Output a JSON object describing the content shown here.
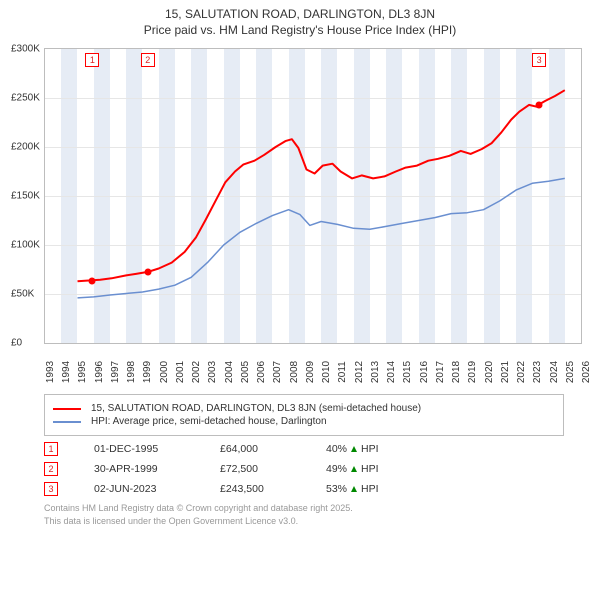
{
  "title": {
    "line1": "15, SALUTATION ROAD, DARLINGTON, DL3 8JN",
    "line2": "Price paid vs. HM Land Registry's House Price Index (HPI)"
  },
  "chart": {
    "type": "line",
    "background_color": "#ffffff",
    "border_color": "#bdbdbd",
    "grid_color": "#e6e6e6",
    "band_color": "#e6ecf5",
    "ylim": [
      0,
      300000
    ],
    "ytick_step": 50000,
    "yticks": [
      "£0",
      "£50K",
      "£100K",
      "£150K",
      "£200K",
      "£250K",
      "£300K"
    ],
    "xlim": [
      1993,
      2026
    ],
    "xticks": [
      1993,
      1994,
      1995,
      1996,
      1997,
      1998,
      1999,
      2000,
      2001,
      2002,
      2003,
      2004,
      2005,
      2006,
      2007,
      2008,
      2009,
      2010,
      2011,
      2012,
      2013,
      2014,
      2015,
      2016,
      2017,
      2018,
      2019,
      2020,
      2021,
      2022,
      2023,
      2024,
      2025,
      2026
    ],
    "band_years": [
      1994,
      1996,
      1998,
      2000,
      2002,
      2004,
      2006,
      2008,
      2010,
      2012,
      2014,
      2016,
      2018,
      2020,
      2022,
      2024
    ],
    "marker_box_color": "#ff0000",
    "marker_text_color": "#dd2222",
    "series": [
      {
        "name": "price_paid",
        "label": "15, SALUTATION ROAD, DARLINGTON, DL3 8JN (semi-detached house)",
        "color": "#ff0000",
        "line_width": 2,
        "data": [
          [
            1995.0,
            63000
          ],
          [
            1995.92,
            64000
          ],
          [
            1996.4,
            64500
          ],
          [
            1997.1,
            66000
          ],
          [
            1998.0,
            69000
          ],
          [
            1998.6,
            70500
          ],
          [
            1999.33,
            72500
          ],
          [
            2000.0,
            76000
          ],
          [
            2000.8,
            82000
          ],
          [
            2001.6,
            93000
          ],
          [
            2002.3,
            108000
          ],
          [
            2002.9,
            126000
          ],
          [
            2003.5,
            145000
          ],
          [
            2004.1,
            164000
          ],
          [
            2004.7,
            175000
          ],
          [
            2005.2,
            182000
          ],
          [
            2005.9,
            186000
          ],
          [
            2006.5,
            192000
          ],
          [
            2007.2,
            200000
          ],
          [
            2007.8,
            206000
          ],
          [
            2008.2,
            208000
          ],
          [
            2008.6,
            199000
          ],
          [
            2009.1,
            177000
          ],
          [
            2009.6,
            173000
          ],
          [
            2010.1,
            181000
          ],
          [
            2010.7,
            183000
          ],
          [
            2011.2,
            175000
          ],
          [
            2011.9,
            168000
          ],
          [
            2012.5,
            171000
          ],
          [
            2013.2,
            168000
          ],
          [
            2013.9,
            170000
          ],
          [
            2014.6,
            175000
          ],
          [
            2015.2,
            179000
          ],
          [
            2015.9,
            181000
          ],
          [
            2016.6,
            186000
          ],
          [
            2017.2,
            188000
          ],
          [
            2017.9,
            191000
          ],
          [
            2018.6,
            196000
          ],
          [
            2019.2,
            193000
          ],
          [
            2019.9,
            198000
          ],
          [
            2020.5,
            204000
          ],
          [
            2021.1,
            215000
          ],
          [
            2021.7,
            228000
          ],
          [
            2022.2,
            236000
          ],
          [
            2022.8,
            243000
          ],
          [
            2023.3,
            241000
          ],
          [
            2023.42,
            243500
          ],
          [
            2023.8,
            247000
          ],
          [
            2024.4,
            252000
          ],
          [
            2025.0,
            258000
          ]
        ],
        "points": [
          {
            "x": 1995.92,
            "y": 64000
          },
          {
            "x": 1999.33,
            "y": 72500
          },
          {
            "x": 2023.42,
            "y": 243500
          }
        ]
      },
      {
        "name": "hpi",
        "label": "HPI: Average price, semi-detached house, Darlington",
        "color": "#6a8fd0",
        "line_width": 1.5,
        "data": [
          [
            1995.0,
            46000
          ],
          [
            1996.0,
            47000
          ],
          [
            1997.0,
            49000
          ],
          [
            1998.0,
            50500
          ],
          [
            1999.0,
            52000
          ],
          [
            2000.0,
            55000
          ],
          [
            2001.0,
            59000
          ],
          [
            2002.0,
            67000
          ],
          [
            2003.0,
            82000
          ],
          [
            2004.0,
            100000
          ],
          [
            2005.0,
            113000
          ],
          [
            2006.0,
            122000
          ],
          [
            2007.0,
            130000
          ],
          [
            2008.0,
            136000
          ],
          [
            2008.7,
            131000
          ],
          [
            2009.3,
            120000
          ],
          [
            2010.0,
            124000
          ],
          [
            2011.0,
            121000
          ],
          [
            2012.0,
            117000
          ],
          [
            2013.0,
            116000
          ],
          [
            2014.0,
            119000
          ],
          [
            2015.0,
            122000
          ],
          [
            2016.0,
            125000
          ],
          [
            2017.0,
            128000
          ],
          [
            2018.0,
            132000
          ],
          [
            2019.0,
            133000
          ],
          [
            2020.0,
            136000
          ],
          [
            2021.0,
            145000
          ],
          [
            2022.0,
            156000
          ],
          [
            2023.0,
            163000
          ],
          [
            2024.0,
            165000
          ],
          [
            2025.0,
            168000
          ]
        ],
        "points": []
      }
    ],
    "marker_boxes": [
      {
        "idx": "1",
        "x": 1995.92
      },
      {
        "idx": "2",
        "x": 1999.33
      },
      {
        "idx": "3",
        "x": 2023.42
      }
    ]
  },
  "legend": {
    "rows": [
      {
        "color": "#ff0000",
        "label": "15, SALUTATION ROAD, DARLINGTON, DL3 8JN (semi-detached house)"
      },
      {
        "color": "#6a8fd0",
        "label": "HPI: Average price, semi-detached house, Darlington"
      }
    ]
  },
  "sales": {
    "arrow_color": "#008800",
    "rows": [
      {
        "idx": "1",
        "date": "01-DEC-1995",
        "price": "£64,000",
        "hpi_pct": "40%",
        "hpi_label": "HPI"
      },
      {
        "idx": "2",
        "date": "30-APR-1999",
        "price": "£72,500",
        "hpi_pct": "49%",
        "hpi_label": "HPI"
      },
      {
        "idx": "3",
        "date": "02-JUN-2023",
        "price": "£243,500",
        "hpi_pct": "53%",
        "hpi_label": "HPI"
      }
    ]
  },
  "footer": {
    "line1": "Contains HM Land Registry data © Crown copyright and database right 2025.",
    "line2": "This data is licensed under the Open Government Licence v3.0."
  }
}
